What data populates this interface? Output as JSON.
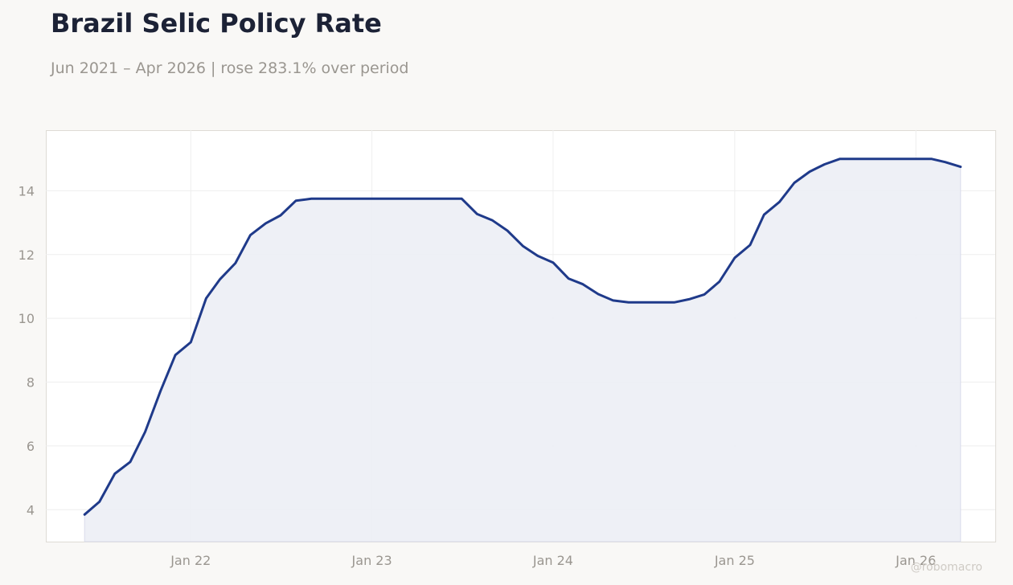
{
  "header": {
    "title": "Brazil Selic Policy Rate",
    "subtitle": "Jun 2021 – Apr 2026 | rose 283.1% over period"
  },
  "watermark": "@robomacro",
  "colors": {
    "background": "#f9f8f6",
    "plot_background": "#ffffff",
    "line": "#1f3a8a",
    "fill": "#eceef5",
    "grid": "#eeeeee",
    "text_muted": "#9a9690",
    "title": "#1c2236"
  },
  "chart_data": {
    "type": "area",
    "title": "Brazil Selic Policy Rate",
    "subtitle": "Jun 2021 – Apr 2026 | rose 283.1% over period",
    "xlabel": "",
    "ylabel": "",
    "grid": true,
    "ylim": [
      3.0,
      15.9
    ],
    "xlim": [
      "2021-03-15",
      "2026-06-10"
    ],
    "x_ticks": [
      {
        "date": "2022-01-01",
        "label": "Jan 22"
      },
      {
        "date": "2023-01-01",
        "label": "Jan 23"
      },
      {
        "date": "2024-01-01",
        "label": "Jan 24"
      },
      {
        "date": "2025-01-01",
        "label": "Jan 25"
      },
      {
        "date": "2026-01-01",
        "label": "Jan 26"
      }
    ],
    "y_ticks": [
      4,
      6,
      8,
      10,
      12,
      14
    ],
    "series": [
      {
        "x": [
          "2021-06-01",
          "2021-07-01",
          "2021-08-01",
          "2021-09-01",
          "2021-10-01",
          "2021-11-01",
          "2021-12-01",
          "2022-01-01",
          "2022-02-01",
          "2022-03-01",
          "2022-04-01",
          "2022-05-01",
          "2022-06-01",
          "2022-07-01",
          "2022-08-01",
          "2022-09-01",
          "2022-10-01",
          "2022-11-01",
          "2022-12-01",
          "2023-01-01",
          "2023-02-01",
          "2023-03-01",
          "2023-04-01",
          "2023-05-01",
          "2023-06-01",
          "2023-07-01",
          "2023-08-01",
          "2023-09-01",
          "2023-10-01",
          "2023-11-01",
          "2023-12-01",
          "2024-01-01",
          "2024-02-01",
          "2024-03-01",
          "2024-04-01",
          "2024-05-01",
          "2024-06-01",
          "2024-07-01",
          "2024-08-01",
          "2024-09-01",
          "2024-10-01",
          "2024-11-01",
          "2024-12-01",
          "2025-01-01",
          "2025-02-01",
          "2025-03-01",
          "2025-04-01",
          "2025-05-01",
          "2025-06-01",
          "2025-07-01",
          "2025-08-01",
          "2025-09-01",
          "2025-10-01",
          "2025-11-01",
          "2025-12-01",
          "2026-01-01",
          "2026-02-01",
          "2026-03-01",
          "2026-04-01"
        ],
        "values": [
          3.85,
          4.25,
          5.13,
          5.5,
          6.44,
          7.72,
          8.85,
          9.25,
          10.63,
          11.23,
          11.73,
          12.61,
          12.98,
          13.23,
          13.69,
          13.75,
          13.75,
          13.75,
          13.75,
          13.75,
          13.75,
          13.75,
          13.75,
          13.75,
          13.75,
          13.75,
          13.27,
          13.07,
          12.75,
          12.27,
          11.96,
          11.75,
          11.25,
          11.07,
          10.76,
          10.56,
          10.5,
          10.5,
          10.5,
          10.5,
          10.6,
          10.75,
          11.15,
          11.9,
          12.3,
          13.25,
          13.65,
          14.25,
          14.6,
          14.83,
          15.0,
          15.0,
          15.0,
          15.0,
          15.0,
          15.0,
          15.0,
          14.9,
          14.75
        ]
      }
    ]
  }
}
